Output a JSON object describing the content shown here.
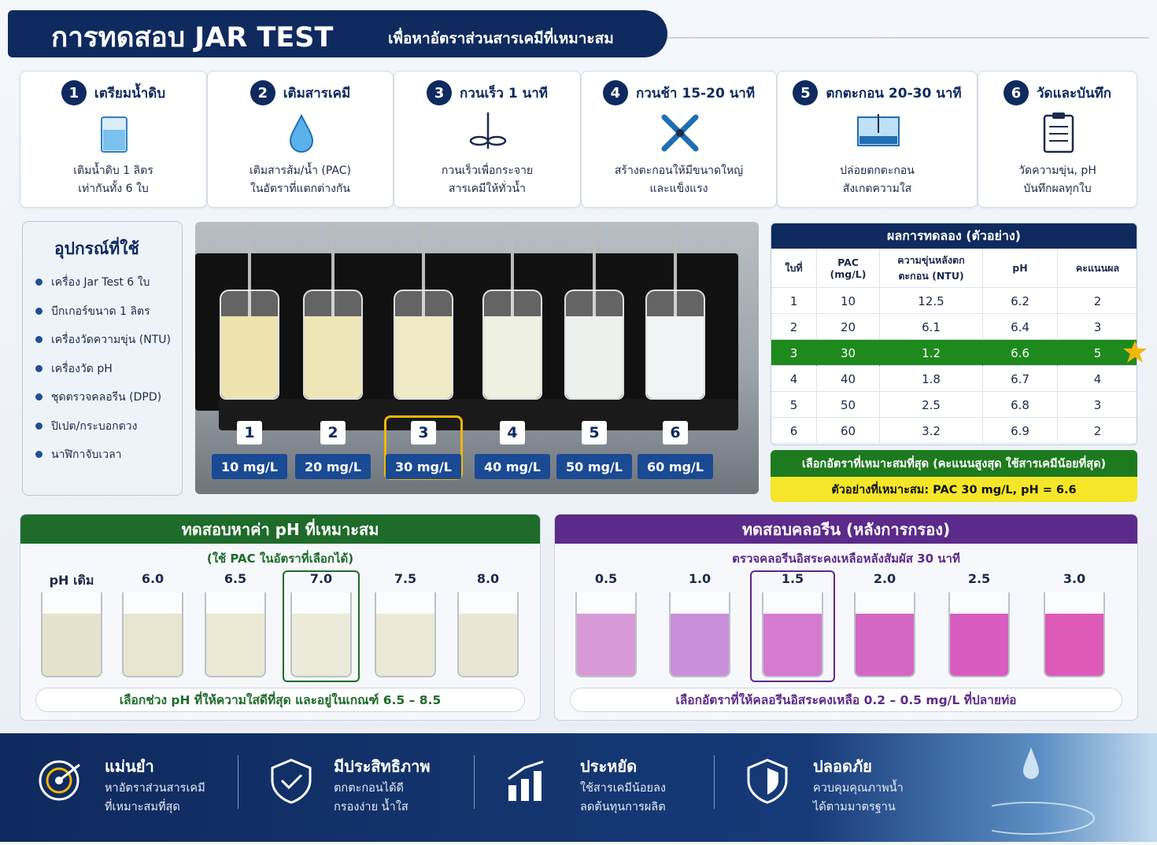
{
  "header": {
    "title": "การทดสอบ JAR TEST",
    "subtitle": "เพื่อหาอัตราส่วนสารเคมีที่เหมาะสม"
  },
  "steps": [
    {
      "number": "1",
      "title": "เตรียมน้ำดิบ",
      "text": [
        "เติมน้ำดิบ 1 ลิตร",
        "เท่ากันทั้ง 6 ใบ"
      ]
    },
    {
      "number": "2",
      "title": "เติมสารเคมี",
      "text": [
        "เติมสารส้ม/น้ำ (PAC)",
        "ในอัตราที่แตกต่างกัน"
      ]
    },
    {
      "number": "3",
      "title": "กวนเร็ว 1 นาที",
      "text": [
        "กวนเร็วเพื่อกระจาย",
        "สารเคมีให้ทั่วน้ำ"
      ]
    },
    {
      "number": "4",
      "title": "กวนช้า 15-20 นาที",
      "text": [
        "สร้างตะกอนให้มีขนาดใหญ่",
        "และแข็งแรง"
      ]
    },
    {
      "number": "5",
      "title": "ตกตะกอน 20-30 นาที",
      "text": [
        "ปล่อยตกตะกอน",
        "สังเกตความใส"
      ]
    },
    {
      "number": "6",
      "title": "วัดและบันทึก",
      "text": [
        "วัดความขุ่น, pH",
        "บันทึกผลทุกใบ"
      ]
    }
  ],
  "equipment": {
    "title": "อุปกรณ์ที่ใช้",
    "items": [
      "เครื่อง Jar Test 6 ใบ",
      "บีกเกอร์ขนาด 1 ลิตร",
      "เครื่องวัดความขุ่น (NTU)",
      "เครื่องวัด pH",
      "ชุดตรวจคลอรีน (DPD)",
      "ปิเปต/กระบอกตวง",
      "นาฬิกาจับเวลา"
    ]
  },
  "jars": [
    {
      "number": "1",
      "dose": "10 mg/L"
    },
    {
      "number": "2",
      "dose": "20 mg/L"
    },
    {
      "number": "3",
      "dose": "30 mg/L",
      "highlight": true
    },
    {
      "number": "4",
      "dose": "40 mg/L"
    },
    {
      "number": "5",
      "dose": "50 mg/L"
    },
    {
      "number": "6",
      "dose": "60 mg/L"
    }
  ],
  "results": {
    "title": "ผลการทดลอง (ตัวอย่าง)",
    "columns": [
      "ใบที่",
      "PAC (mg/L)",
      "ความขุ่นหลังตกตะกอน (NTU)",
      "pH",
      "คะแนนผล"
    ],
    "rows": [
      [
        1,
        10,
        12.5,
        6.2,
        2
      ],
      [
        2,
        20,
        6.1,
        6.4,
        3
      ],
      [
        3,
        30,
        1.2,
        6.6,
        5
      ],
      [
        4,
        40,
        1.8,
        6.7,
        4
      ],
      [
        5,
        50,
        2.5,
        6.8,
        3
      ],
      [
        6,
        60,
        3.2,
        6.9,
        2
      ]
    ],
    "highlight_row": [
      false,
      false,
      true,
      false,
      false,
      false
    ],
    "conclusion": "เลือกอัตราที่เหมาะสมที่สุด (คะแนนสูงสุด ใช้สารเคมีน้อยที่สุด)",
    "example": "ตัวอย่างที่เหมาะสม: PAC 30 mg/L, pH = 6.6"
  },
  "ph_test": {
    "title": "ทดสอบหาค่า pH ที่เหมาะสม",
    "subtitle": "(ใช้ PAC ในอัตราที่เลือกได้)",
    "beakers": [
      {
        "label": "pH เดิม"
      },
      {
        "label": "6.0"
      },
      {
        "label": "6.5"
      },
      {
        "label": "7.0",
        "highlight": true
      },
      {
        "label": "7.5"
      },
      {
        "label": "8.0"
      }
    ],
    "note": "เลือกช่วง pH ที่ให้ความใสดีที่สุด และอยู่ในเกณฑ์ 6.5 – 8.5"
  },
  "chlorine_test": {
    "title": "ทดสอบคลอรีน (หลังการกรอง)",
    "subtitle": "ตรวจคลอรีนอิสระคงเหลือหลังสัมผัส 30 นาที",
    "beakers": [
      {
        "label": "0.5"
      },
      {
        "label": "1.0"
      },
      {
        "label": "1.5",
        "highlight": true
      },
      {
        "label": "2.0"
      },
      {
        "label": "2.5"
      },
      {
        "label": "3.0"
      }
    ],
    "note": "เลือกอัตราที่ให้คลอรีนอิสระคงเหลือ 0.2 – 0.5 mg/L ที่ปลายท่อ"
  },
  "benefits": [
    {
      "title": "แม่นยำ",
      "text": [
        "หาอัตราส่วนสารเคมี",
        "ที่เหมาะสมที่สุด"
      ]
    },
    {
      "title": "มีประสิทธิภาพ",
      "text": [
        "ตกตะกอนได้ดี",
        "กรองง่าย น้ำใส"
      ]
    },
    {
      "title": "ประหยัด",
      "text": [
        "ใช้สารเคมีน้อยลง",
        "ลดต้นทุนการผลิต"
      ]
    },
    {
      "title": "ปลอดภัย",
      "text": [
        "ควบคุมคุณภาพน้ำ",
        "ได้ตามมาตรฐาน"
      ]
    }
  ]
}
